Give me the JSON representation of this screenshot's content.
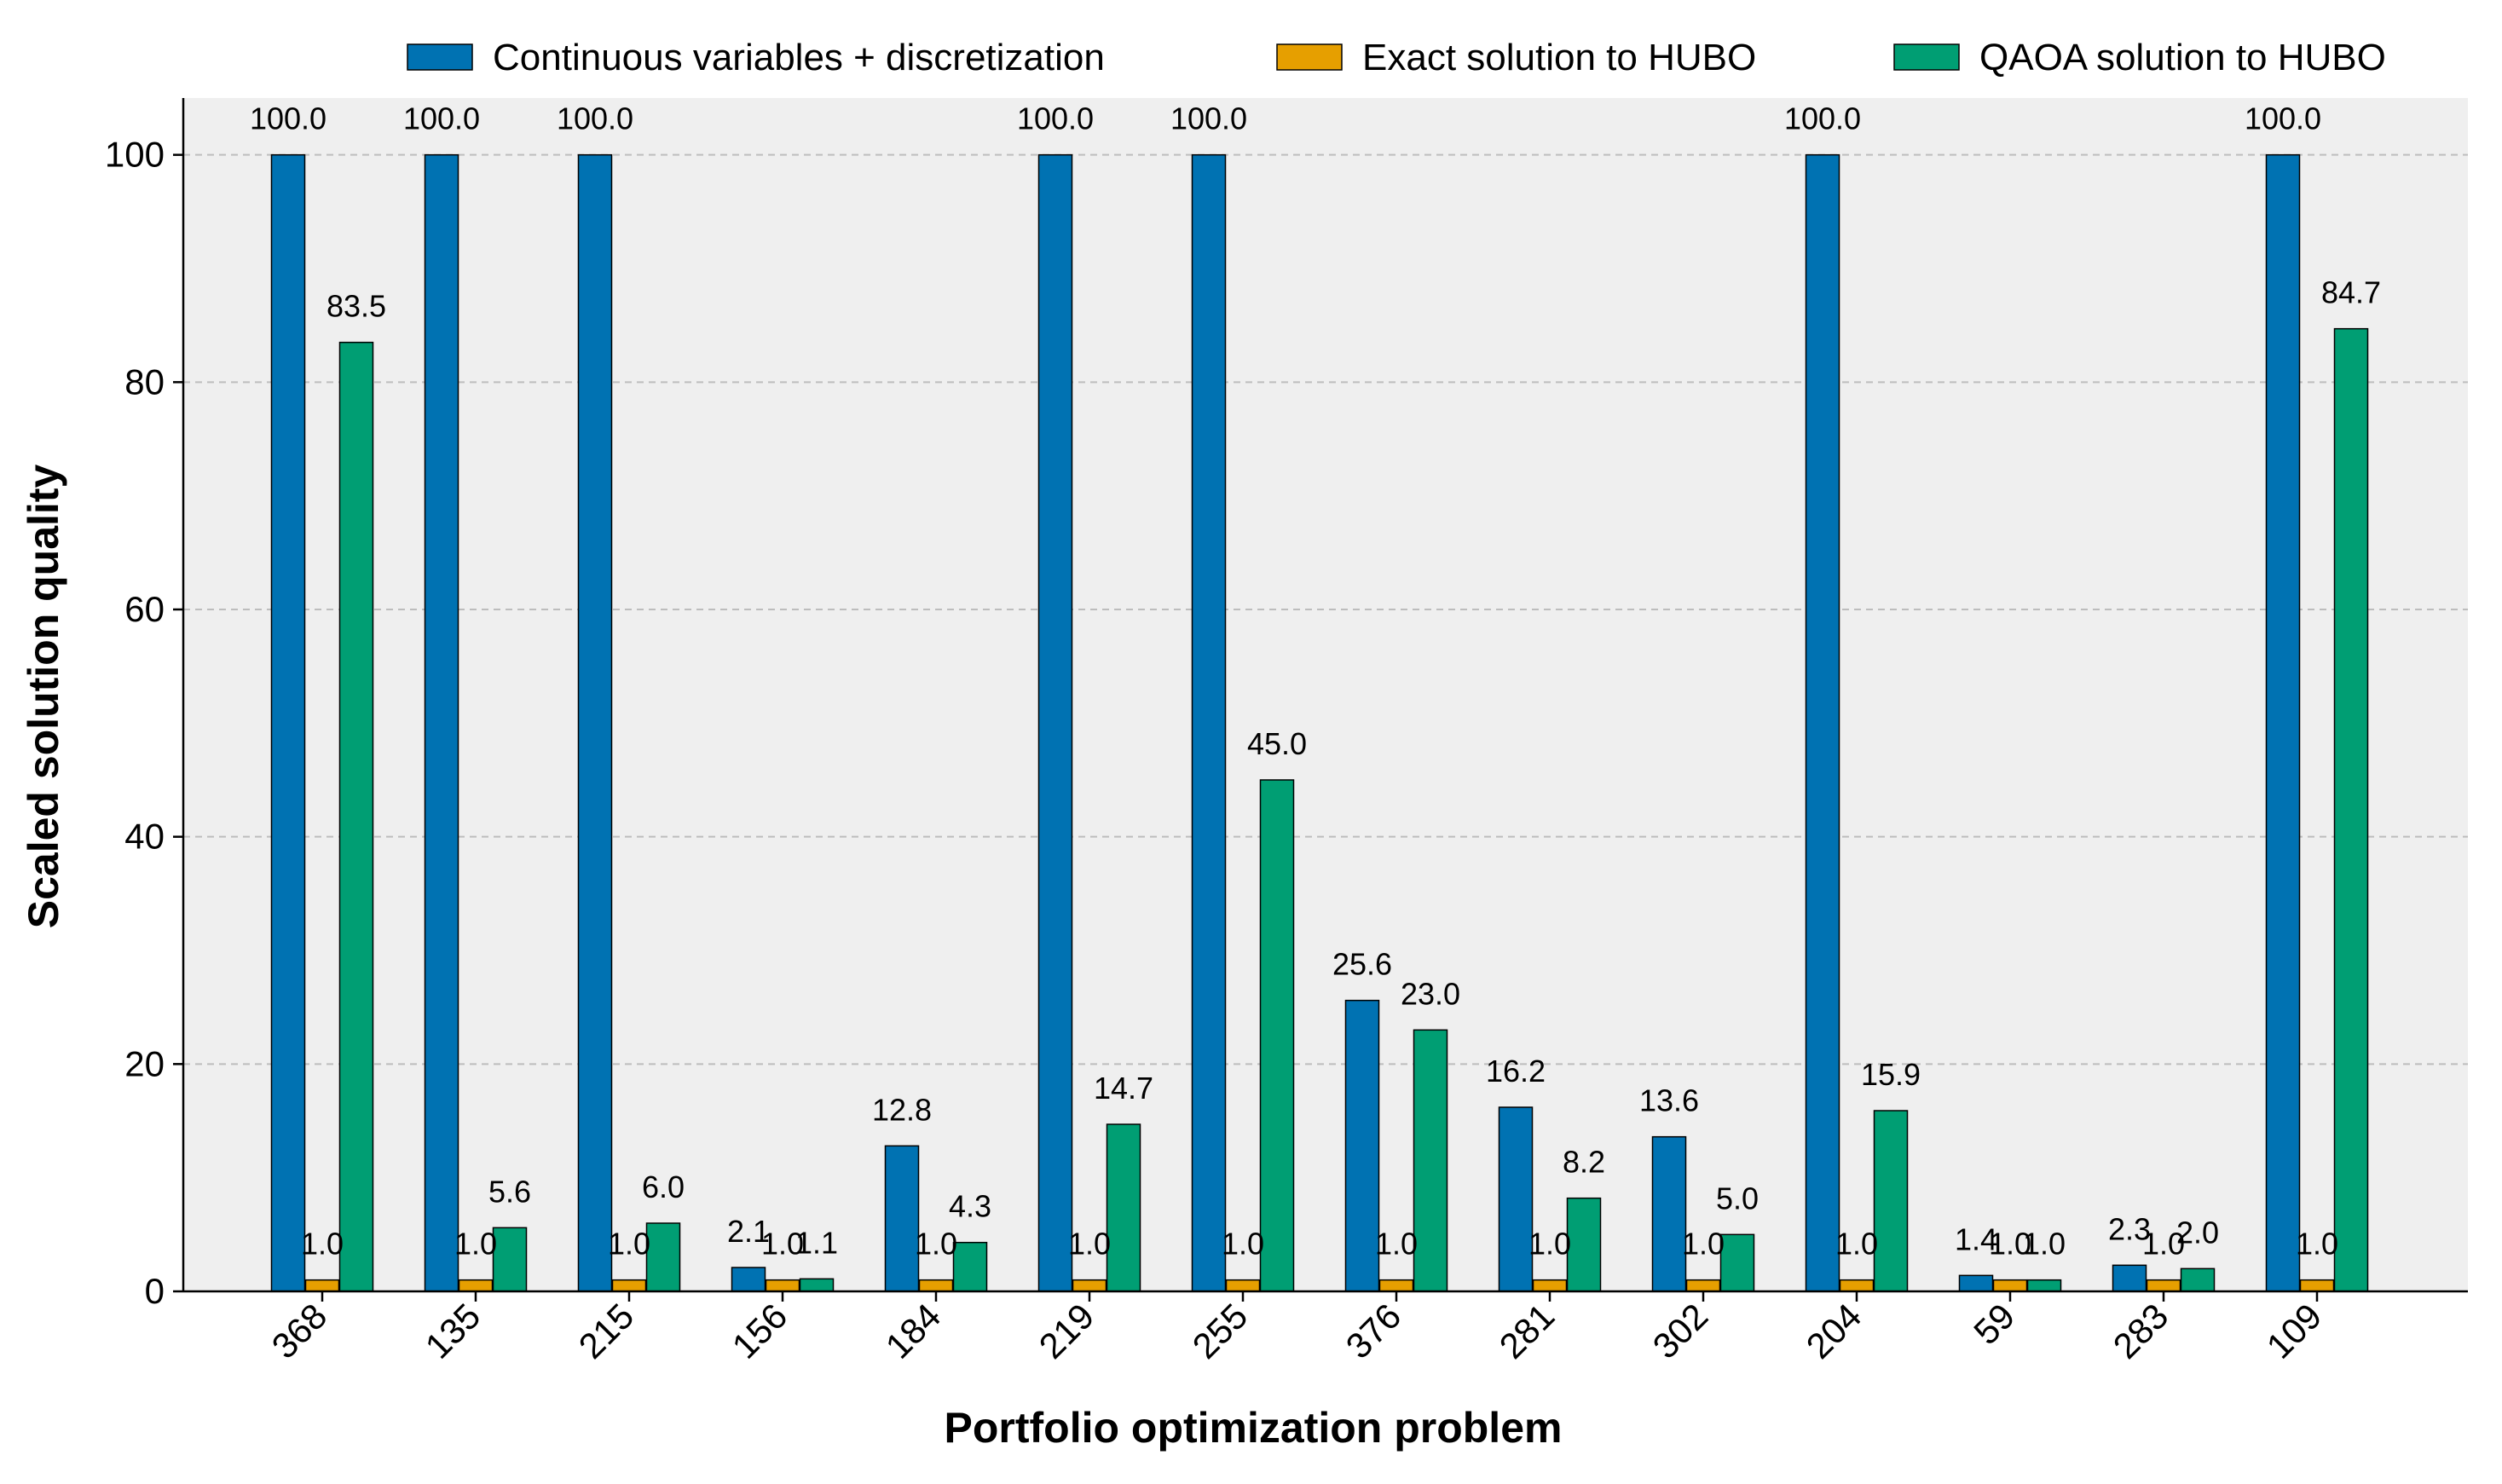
{
  "chart_data": {
    "type": "bar",
    "title": "",
    "xlabel": "Portfolio optimization problem",
    "ylabel": "Scaled solution quality",
    "ylim": [
      0,
      105
    ],
    "yticks": [
      0,
      20,
      40,
      60,
      80,
      100
    ],
    "grid": "horizontal dashed",
    "legend_position": "top",
    "categories": [
      "368",
      "135",
      "215",
      "156",
      "184",
      "219",
      "255",
      "376",
      "281",
      "302",
      "204",
      "59",
      "283",
      "109"
    ],
    "series": [
      {
        "name": "Continuous variables + discretization",
        "color": "#0072B2",
        "values": [
          100.0,
          100.0,
          100.0,
          2.1,
          12.8,
          100.0,
          100.0,
          25.6,
          16.2,
          13.6,
          100.0,
          1.4,
          2.3,
          100.0
        ],
        "labels": [
          "100.0",
          "100.0",
          "100.0",
          "2.1",
          "12.8",
          "100.0",
          "100.0",
          "25.6",
          "16.2",
          "13.6",
          "100.0",
          "1.4",
          "2.3",
          "100.0"
        ]
      },
      {
        "name": "Exact solution to HUBO",
        "color": "#E69F00",
        "values": [
          1.0,
          1.0,
          1.0,
          1.0,
          1.0,
          1.0,
          1.0,
          1.0,
          1.0,
          1.0,
          1.0,
          1.0,
          1.0,
          1.0
        ],
        "labels": [
          "1.0",
          "1.0",
          "1.0",
          "1.0",
          "1.0",
          "1.0",
          "1.0",
          "1.0",
          "1.0",
          "1.0",
          "1.0",
          "1.0",
          "1.0",
          "1.0"
        ]
      },
      {
        "name": "QAOA solution to HUBO",
        "color": "#009E73",
        "values": [
          83.5,
          5.6,
          6.0,
          1.1,
          4.3,
          14.7,
          45.0,
          23.0,
          8.2,
          5.0,
          15.9,
          1.0,
          2.0,
          84.7
        ],
        "labels": [
          "83.5",
          "5.6",
          "6.0",
          "1.1",
          "4.3",
          "14.7",
          "45.0",
          "23.0",
          "8.2",
          "5.0",
          "15.9",
          "1.0",
          "2.0",
          "84.7"
        ]
      }
    ]
  },
  "colors": {
    "plot_background": "#EFEFEF",
    "grid": "#BDBDBD",
    "axis": "#000000"
  }
}
